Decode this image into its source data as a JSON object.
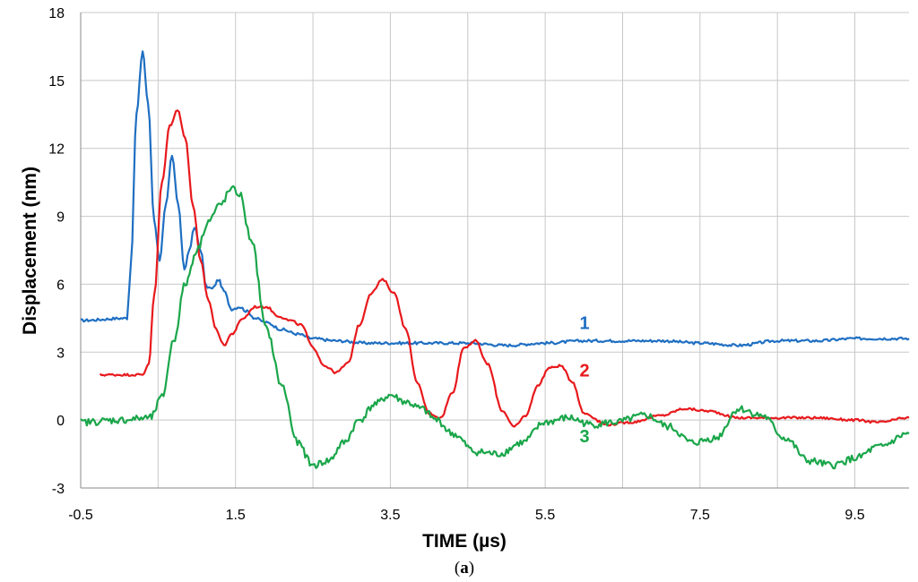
{
  "chart_data": {
    "type": "line",
    "xlabel": "TIME  (µs)",
    "ylabel": "Displacement  (nm)",
    "caption": {
      "open": "(",
      "letter": "a",
      "close": ")"
    },
    "xlim": [
      -0.5,
      10.2
    ],
    "ylim": [
      -3,
      18
    ],
    "xticks": [
      -0.5,
      1.5,
      3.5,
      5.5,
      7.5,
      9.5
    ],
    "xtick_labels": [
      "-0.5",
      "1.5",
      "3.5",
      "5.5",
      "7.5",
      "9.5"
    ],
    "yticks": [
      -3,
      0,
      3,
      6,
      9,
      12,
      15,
      18
    ],
    "ytick_labels": [
      "-3",
      "0",
      "3",
      "6",
      "9",
      "12",
      "15",
      "18"
    ],
    "x_gridlines": [
      -0.5,
      0.5,
      1.5,
      2.5,
      3.5,
      4.5,
      5.5,
      6.5,
      7.5,
      8.5,
      9.5
    ],
    "grid": true,
    "series": [
      {
        "name": "1",
        "color": "#1f6fc2",
        "label_at": [
          5.8,
          4.3
        ],
        "x": [
          -0.5,
          0.1,
          0.15,
          0.22,
          0.3,
          0.37,
          0.45,
          0.52,
          0.6,
          0.68,
          0.76,
          0.84,
          0.9,
          0.97,
          1.05,
          1.12,
          1.2,
          1.28,
          1.35,
          1.45,
          1.55,
          1.65,
          1.75,
          1.9,
          2.1,
          2.3,
          2.5,
          2.8,
          3.2,
          3.6,
          4.0,
          4.5,
          5.0,
          5.5,
          6.0,
          6.5,
          7.0,
          7.5,
          8.0,
          8.5,
          9.0,
          9.5,
          10.2
        ],
        "y": [
          4.4,
          4.5,
          7.0,
          13.5,
          16.3,
          14.0,
          8.8,
          7.0,
          9.5,
          11.7,
          9.5,
          6.6,
          7.5,
          8.5,
          7.5,
          5.9,
          5.8,
          6.2,
          5.7,
          4.9,
          5.0,
          4.8,
          4.5,
          4.3,
          4.0,
          3.8,
          3.6,
          3.5,
          3.4,
          3.4,
          3.4,
          3.4,
          3.3,
          3.4,
          3.5,
          3.5,
          3.5,
          3.4,
          3.3,
          3.5,
          3.5,
          3.6,
          3.6
        ]
      },
      {
        "name": "2",
        "color": "#e8191c",
        "label_at": [
          5.8,
          2.2
        ],
        "x": [
          -0.25,
          0.3,
          0.38,
          0.45,
          0.55,
          0.65,
          0.75,
          0.85,
          0.95,
          1.05,
          1.15,
          1.25,
          1.35,
          1.45,
          1.6,
          1.75,
          1.9,
          2.05,
          2.2,
          2.35,
          2.5,
          2.65,
          2.8,
          2.95,
          3.1,
          3.25,
          3.4,
          3.55,
          3.7,
          3.85,
          4.0,
          4.15,
          4.3,
          4.45,
          4.6,
          4.75,
          4.95,
          5.1,
          5.25,
          5.4,
          5.55,
          5.7,
          5.85,
          6.0,
          6.3,
          6.6,
          7.0,
          7.3,
          7.6,
          8.0,
          8.5,
          9.0,
          9.5,
          9.8,
          10.2
        ],
        "y": [
          2.0,
          2.0,
          2.5,
          5.5,
          10.5,
          13.0,
          13.7,
          12.5,
          9.5,
          7.0,
          5.3,
          4.0,
          3.3,
          3.8,
          4.5,
          5.0,
          5.0,
          4.6,
          4.4,
          4.2,
          3.2,
          2.4,
          2.1,
          2.5,
          4.2,
          5.6,
          6.2,
          5.6,
          4.0,
          1.6,
          0.3,
          0.1,
          1.2,
          3.2,
          3.5,
          2.5,
          0.4,
          -0.3,
          0.2,
          1.5,
          2.3,
          2.4,
          1.7,
          0.3,
          -0.2,
          -0.1,
          0.2,
          0.5,
          0.4,
          0.1,
          0.1,
          0.1,
          0.0,
          -0.1,
          0.1
        ]
      },
      {
        "name": "3",
        "color": "#1aa64a",
        "label_at": [
          5.8,
          -0.7
        ],
        "x": [
          -0.5,
          0.0,
          0.4,
          0.55,
          0.7,
          0.85,
          1.0,
          1.15,
          1.3,
          1.45,
          1.55,
          1.7,
          1.9,
          2.1,
          2.3,
          2.5,
          2.7,
          2.9,
          3.1,
          3.3,
          3.5,
          3.7,
          3.9,
          4.1,
          4.3,
          4.6,
          4.9,
          5.2,
          5.5,
          5.8,
          6.1,
          6.4,
          6.8,
          7.1,
          7.4,
          7.7,
          8.0,
          8.3,
          8.6,
          8.9,
          9.2,
          9.5,
          9.8,
          10.2
        ],
        "y": [
          -0.1,
          0.0,
          0.1,
          1.0,
          3.5,
          6.0,
          7.5,
          8.8,
          9.5,
          10.2,
          10.0,
          8.0,
          4.0,
          1.5,
          -1.0,
          -2.0,
          -1.8,
          -1.0,
          0.0,
          0.7,
          1.1,
          0.8,
          0.5,
          0.0,
          -0.6,
          -1.4,
          -1.5,
          -1.0,
          -0.1,
          0.1,
          -0.2,
          -0.1,
          0.2,
          -0.3,
          -1.0,
          -0.8,
          0.5,
          0.2,
          -0.8,
          -1.8,
          -2.0,
          -1.7,
          -1.2,
          -0.6
        ]
      }
    ]
  }
}
